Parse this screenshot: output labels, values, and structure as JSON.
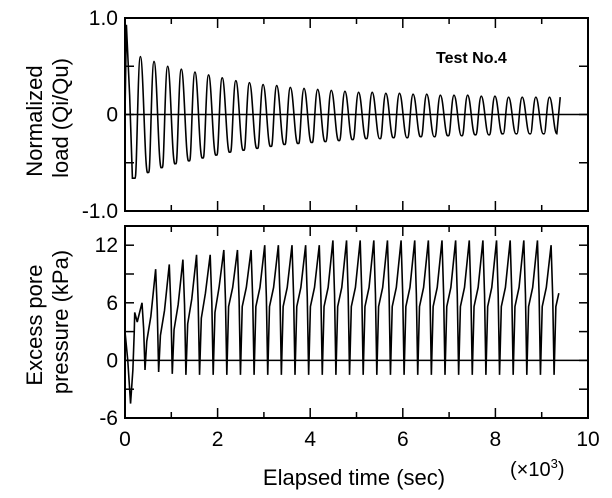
{
  "chart_data": [
    {
      "type": "line",
      "panel": "top",
      "ylabel_lines": [
        "Normalized",
        "load (Qi/Qu)"
      ],
      "annotation": "Test No.4",
      "ylim": [
        -1.0,
        1.0
      ],
      "y_ticks": [
        -1.0,
        -0.5,
        0,
        0.5,
        1.0
      ],
      "y_tick_labels": [
        "-1.0",
        "0",
        "1.0"
      ],
      "y_tick_label_values": [
        -1.0,
        0,
        1.0
      ],
      "zero_line": true,
      "series": [
        {
          "cycles": 31,
          "t_start": 0.22,
          "t_end": 9.35,
          "peak_values": [
            0.6,
            0.55,
            0.5,
            0.47,
            0.44,
            0.41,
            0.38,
            0.35,
            0.33,
            0.31,
            0.3,
            0.28,
            0.27,
            0.26,
            0.25,
            0.24,
            0.23,
            0.23,
            0.22,
            0.22,
            0.21,
            0.21,
            0.2,
            0.2,
            0.2,
            0.19,
            0.19,
            0.18,
            0.18,
            0.18,
            0.18
          ],
          "trough_values": [
            -0.66,
            -0.6,
            -0.55,
            -0.51,
            -0.48,
            -0.45,
            -0.42,
            -0.39,
            -0.37,
            -0.35,
            -0.33,
            -0.31,
            -0.3,
            -0.29,
            -0.28,
            -0.27,
            -0.26,
            -0.25,
            -0.25,
            -0.24,
            -0.24,
            -0.23,
            -0.23,
            -0.22,
            -0.22,
            -0.21,
            -0.21,
            -0.2,
            -0.2,
            -0.2,
            -0.2
          ],
          "initial_peak": 0.93
        }
      ]
    },
    {
      "type": "line",
      "panel": "bottom",
      "ylabel_lines": [
        "Excess pore",
        "pressure (kPa)"
      ],
      "ylim": [
        -6,
        14
      ],
      "y_ticks": [
        -6,
        -3,
        0,
        3,
        6,
        9,
        12
      ],
      "y_tick_labels": [
        "-6",
        "0",
        "6",
        "12"
      ],
      "y_tick_label_values": [
        -6,
        0,
        6,
        12
      ],
      "zero_line": true,
      "series": [
        {
          "cycles": 31,
          "t_start": 0.22,
          "t_end": 9.35,
          "peak_values": [
            6,
            9.5,
            10,
            10.5,
            11,
            11,
            11.5,
            11.5,
            11.5,
            12,
            12,
            12,
            12,
            12,
            12.5,
            12.5,
            12.5,
            12.5,
            12.5,
            12.5,
            12.5,
            12.5,
            12.5,
            12.5,
            12.5,
            12.5,
            12.5,
            12.5,
            12.5,
            12.5,
            12
          ],
          "trough_values": [
            -1,
            -1.2,
            -1.4,
            -1.5,
            -1.5,
            -1.5,
            -1.5,
            -1.5,
            -1.5,
            -1.5,
            -1.5,
            -1.5,
            -1.5,
            -1.5,
            -1.5,
            -1.5,
            -1.5,
            -1.5,
            -1.5,
            -1.5,
            -1.5,
            -1.5,
            -1.5,
            -1.5,
            -1.5,
            -1.5,
            -1.5,
            -1.5,
            -1.5,
            -1.5,
            -1.5
          ],
          "initial_trough": -4.5,
          "end_value": 7
        }
      ]
    }
  ],
  "x_axis": {
    "xlim": [
      0,
      10
    ],
    "major_ticks": [
      0,
      2,
      4,
      6,
      8,
      10
    ],
    "minor_ticks": [
      1,
      3,
      5,
      7,
      9
    ],
    "tick_labels": [
      "0",
      "2",
      "4",
      "6",
      "8",
      "10"
    ],
    "xlabel": "Elapsed time (sec)",
    "multiplier_prefix": "(×10",
    "multiplier_exp": "3",
    "multiplier_suffix": ")"
  }
}
